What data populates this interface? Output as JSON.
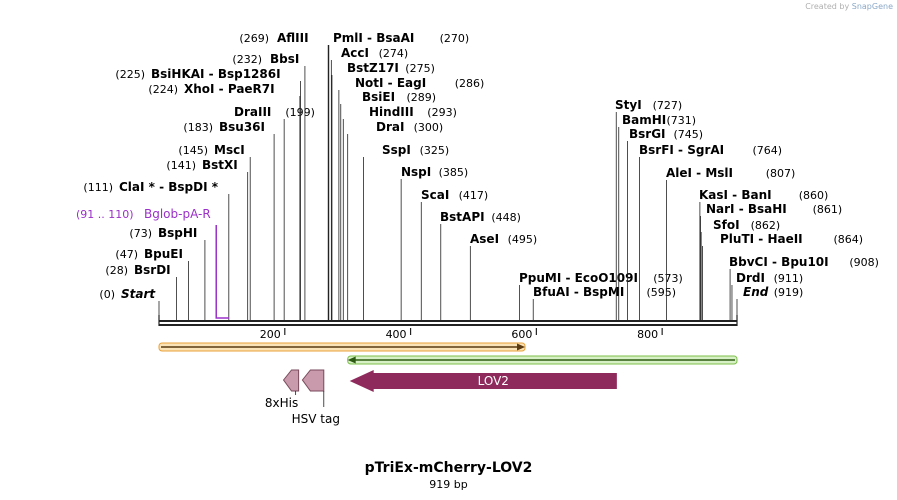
{
  "credit": {
    "prefix": "Created by",
    "brand": "SnapGene"
  },
  "title": "pTriEx-mCherry-LOV2",
  "subtitle": "919 bp",
  "sequence_length": 919,
  "colors": {
    "backbone": "#222222",
    "primer": "#9b30c8",
    "orange_feature": "#e8a23a",
    "green_feature": "#7cc04a",
    "lov2": "#8f2b5c",
    "tag": "#c99aac"
  },
  "ruler": {
    "ticks": [
      200,
      400,
      600,
      800
    ]
  },
  "sites": [
    {
      "name": "Start",
      "pos": "(0)",
      "italic": true,
      "bp": 0
    },
    {
      "name": "BsrDI",
      "pos": "(28)",
      "bp": 28
    },
    {
      "name": "BpuEI",
      "pos": "(47)",
      "bp": 47
    },
    {
      "name": "BspHI",
      "pos": "(73)",
      "bp": 73
    },
    {
      "name": "ClaI *  -  BspDI *",
      "pos": "(111)",
      "bp": 111
    },
    {
      "name": "BstXI",
      "pos": "(141)",
      "bp": 141
    },
    {
      "name": "MscI",
      "pos": "(145)",
      "bp": 145
    },
    {
      "name": "Bsu36I",
      "pos": "(183)",
      "bp": 183
    },
    {
      "name": "DraIII",
      "pos": "(199)",
      "bp": 199
    },
    {
      "name": "XhoI  -  PaeR7I",
      "pos": "(224)",
      "bp": 224
    },
    {
      "name": "BsiHKAI  -  Bsp1286I",
      "pos": "(225)",
      "bp": 225
    },
    {
      "name": "BbsI",
      "pos": "(232)",
      "bp": 232
    },
    {
      "name": "AflIII",
      "pos": "(269)",
      "bp": 269
    },
    {
      "name": "PmlI  -  BsaAI",
      "pos": "(270)",
      "bp": 270
    },
    {
      "name": "AccI",
      "pos": "(274)",
      "bp": 274
    },
    {
      "name": "BstZ17I",
      "pos": "(275)",
      "bp": 275
    },
    {
      "name": "NotI  -  EagI",
      "pos": "(286)",
      "bp": 286
    },
    {
      "name": "BsiEI",
      "pos": "(289)",
      "bp": 289
    },
    {
      "name": "HindIII",
      "pos": "(293)",
      "bp": 293
    },
    {
      "name": "DraI",
      "pos": "(300)",
      "bp": 300
    },
    {
      "name": "SspI",
      "pos": "(325)",
      "bp": 325
    },
    {
      "name": "NspI",
      "pos": "(385)",
      "bp": 385
    },
    {
      "name": "ScaI",
      "pos": "(417)",
      "bp": 417
    },
    {
      "name": "BstAPI",
      "pos": "(448)",
      "bp": 448
    },
    {
      "name": "AseI",
      "pos": "(495)",
      "bp": 495
    },
    {
      "name": "PpuMI  -  EcoO109I",
      "pos": "(573)",
      "bp": 573
    },
    {
      "name": "BfuAI  -  BspMI",
      "pos": "(595)",
      "bp": 595
    },
    {
      "name": "StyI",
      "pos": "(727)",
      "bp": 727
    },
    {
      "name": "BamHI",
      "pos": "(731)",
      "bp": 731
    },
    {
      "name": "BsrGI",
      "pos": "(745)",
      "bp": 745
    },
    {
      "name": "BsrFI  -  SgrAI",
      "pos": "(764)",
      "bp": 764
    },
    {
      "name": "AleI  -  MslI",
      "pos": "(807)",
      "bp": 807
    },
    {
      "name": "KasI  -  BanI",
      "pos": "(860)",
      "bp": 860
    },
    {
      "name": "NarI  -  BsaHI",
      "pos": "(861)",
      "bp": 861
    },
    {
      "name": "SfoI",
      "pos": "(862)",
      "bp": 862
    },
    {
      "name": "PluTI  -  HaeII",
      "pos": "(864)",
      "bp": 864
    },
    {
      "name": "BbvCI  -  Bpu10I",
      "pos": "(908)",
      "bp": 908
    },
    {
      "name": "DrdI",
      "pos": "(911)",
      "bp": 911
    },
    {
      "name": "End",
      "pos": "(919)",
      "italic": true,
      "bp": 919
    }
  ],
  "primer": {
    "range": "(91 .. 110)",
    "name": "Bglob-pA-R",
    "start_bp": 91,
    "end_bp": 110
  },
  "features": [
    {
      "id": "orange",
      "start_bp": 0,
      "end_bp": 582,
      "direction": "forward"
    },
    {
      "id": "green",
      "start_bp": 300,
      "end_bp": 919,
      "direction": "reverse"
    }
  ],
  "arrows": [
    {
      "label": "LOV2",
      "start_bp": 300,
      "end_bp": 728,
      "direction": "reverse"
    },
    {
      "label": "HSV tag",
      "start_bp": 228,
      "end_bp": 262,
      "direction": "reverse"
    },
    {
      "label": "8xHis",
      "start_bp": 198,
      "end_bp": 222,
      "direction": "reverse"
    }
  ]
}
